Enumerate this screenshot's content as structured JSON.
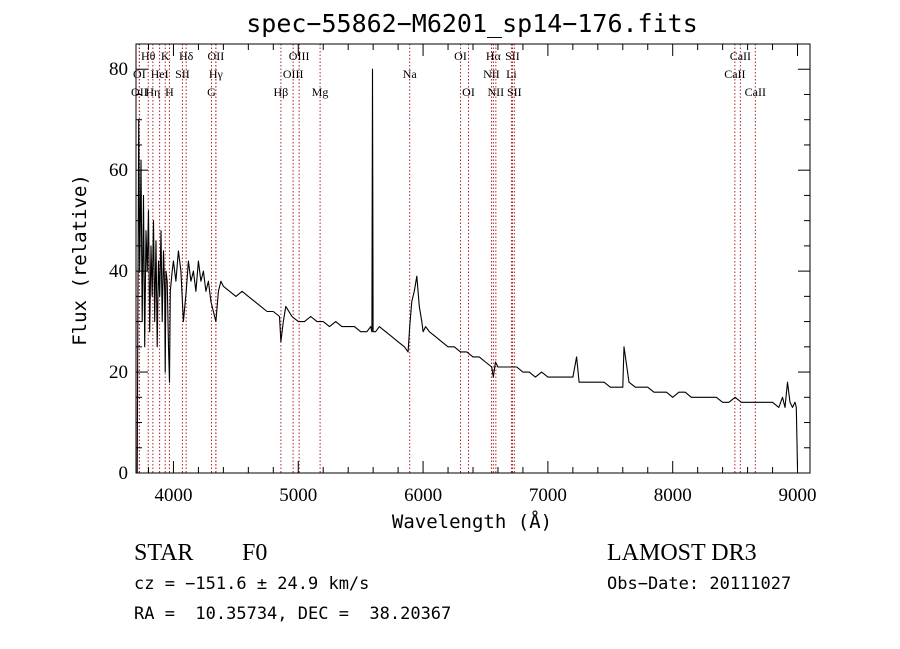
{
  "chart_data": {
    "type": "line",
    "title": "spec−55862−M6201_sp14−176.fits",
    "xlabel": "Wavelength (Å)",
    "ylabel": "Flux (relative)",
    "xlim": [
      3700,
      9100
    ],
    "ylim": [
      0,
      85
    ],
    "x_ticks": [
      4000,
      5000,
      6000,
      7000,
      8000,
      9000
    ],
    "y_ticks": [
      0,
      20,
      40,
      60,
      80
    ],
    "tick_labels_x": [
      "4000",
      "5000",
      "6000",
      "7000",
      "8000",
      "9000"
    ],
    "tick_labels_y": [
      "0",
      "20",
      "40",
      "60",
      "80"
    ],
    "grid": false,
    "series": [
      {
        "name": "flux",
        "color": "#000000",
        "x": [
          3710,
          3722,
          3730,
          3740,
          3750,
          3760,
          3770,
          3780,
          3790,
          3800,
          3810,
          3820,
          3830,
          3840,
          3850,
          3860,
          3870,
          3880,
          3890,
          3900,
          3910,
          3920,
          3930,
          3934,
          3940,
          3950,
          3960,
          3968,
          3975,
          3990,
          4000,
          4020,
          4040,
          4060,
          4080,
          4102,
          4120,
          4140,
          4160,
          4180,
          4200,
          4220,
          4240,
          4260,
          4280,
          4300,
          4320,
          4340,
          4360,
          4380,
          4400,
          4450,
          4500,
          4550,
          4600,
          4650,
          4700,
          4750,
          4800,
          4850,
          4861,
          4880,
          4900,
          4950,
          5000,
          5050,
          5100,
          5150,
          5200,
          5250,
          5300,
          5350,
          5400,
          5450,
          5500,
          5550,
          5580,
          5590,
          5595,
          5600,
          5620,
          5650,
          5700,
          5750,
          5800,
          5850,
          5880,
          5893,
          5910,
          5930,
          5950,
          5970,
          5990,
          6000,
          6020,
          6050,
          6100,
          6150,
          6200,
          6250,
          6300,
          6350,
          6400,
          6450,
          6500,
          6550,
          6563,
          6580,
          6600,
          6650,
          6700,
          6750,
          6800,
          6850,
          6900,
          6950,
          7000,
          7050,
          7100,
          7150,
          7200,
          7230,
          7250,
          7300,
          7350,
          7400,
          7450,
          7500,
          7550,
          7600,
          7610,
          7650,
          7700,
          7750,
          7800,
          7850,
          7900,
          7950,
          8000,
          8050,
          8100,
          8150,
          8200,
          8250,
          8300,
          8350,
          8400,
          8450,
          8500,
          8550,
          8600,
          8650,
          8700,
          8750,
          8800,
          8850,
          8880,
          8900,
          8920,
          8940,
          8960,
          8980,
          8990,
          9000
        ],
        "y": [
          0,
          70,
          40,
          62,
          30,
          55,
          25,
          48,
          40,
          52,
          28,
          45,
          35,
          50,
          30,
          46,
          25,
          42,
          35,
          48,
          30,
          44,
          36,
          20,
          40,
          38,
          25,
          18,
          36,
          40,
          42,
          38,
          44,
          40,
          30,
          36,
          42,
          38,
          40,
          36,
          42,
          38,
          40,
          36,
          38,
          34,
          32,
          30,
          36,
          38,
          37,
          36,
          35,
          36,
          35,
          34,
          33,
          32,
          32,
          31,
          26,
          30,
          33,
          31,
          30,
          30,
          31,
          30,
          30,
          29,
          30,
          29,
          29,
          29,
          28,
          28,
          29,
          28,
          80,
          28,
          28,
          29,
          28,
          27,
          26,
          25,
          24,
          29,
          34,
          36,
          39,
          33,
          30,
          28,
          29,
          28,
          27,
          26,
          25,
          25,
          24,
          24,
          23,
          23,
          22,
          21,
          19,
          22,
          21,
          21,
          21,
          21,
          20,
          20,
          19,
          20,
          19,
          19,
          19,
          19,
          19,
          23,
          18,
          18,
          18,
          18,
          18,
          17,
          17,
          17,
          25,
          18,
          17,
          17,
          17,
          16,
          16,
          16,
          15,
          16,
          16,
          15,
          15,
          15,
          15,
          15,
          14,
          14,
          15,
          14,
          14,
          14,
          14,
          14,
          14,
          13,
          15,
          13,
          18,
          14,
          13,
          14,
          13,
          1
        ]
      }
    ],
    "spectral_lines": [
      {
        "label": "Hθ",
        "x": 3798,
        "row": 1
      },
      {
        "label": "K",
        "x": 3934,
        "row": 1
      },
      {
        "label": "Hδ",
        "x": 4102,
        "row": 1
      },
      {
        "label": "OII",
        "x": 4340,
        "row": 1
      },
      {
        "label": "OIII",
        "x": 5007,
        "row": 1
      },
      {
        "label": "OI",
        "x": 6300,
        "row": 1
      },
      {
        "label": "Hα",
        "x": 6563,
        "row": 1
      },
      {
        "label": "SII",
        "x": 6716,
        "row": 1
      },
      {
        "label": "CaII",
        "x": 8542,
        "row": 1
      },
      {
        "label": "OI",
        "x": 3727,
        "row": 2
      },
      {
        "label": "HeI",
        "x": 3889,
        "row": 2
      },
      {
        "label": "SII",
        "x": 4072,
        "row": 2
      },
      {
        "label": "Hγ",
        "x": 4340,
        "row": 2
      },
      {
        "label": "OIII",
        "x": 4959,
        "row": 2
      },
      {
        "label": "Na",
        "x": 5893,
        "row": 2
      },
      {
        "label": "NII",
        "x": 6548,
        "row": 2
      },
      {
        "label": "Li",
        "x": 6708,
        "row": 2
      },
      {
        "label": "CaII",
        "x": 8498,
        "row": 2
      },
      {
        "label": "OII",
        "x": 3727,
        "row": 3
      },
      {
        "label": "Hη",
        "x": 3835,
        "row": 3
      },
      {
        "label": "H",
        "x": 3968,
        "row": 3
      },
      {
        "label": "G",
        "x": 4305,
        "row": 3
      },
      {
        "label": "Hβ",
        "x": 4861,
        "row": 3
      },
      {
        "label": "Mg",
        "x": 5175,
        "row": 3
      },
      {
        "label": "OI",
        "x": 6364,
        "row": 3
      },
      {
        "label": "NII",
        "x": 6583,
        "row": 3
      },
      {
        "label": "SII",
        "x": 6731,
        "row": 3
      },
      {
        "label": "CaII",
        "x": 8662,
        "row": 3
      }
    ]
  },
  "info": {
    "object_class": "STAR",
    "subclass": "F0",
    "survey": "LAMOST DR3",
    "redshift_text": "cz = −151.6 ± 24.9 km/s",
    "obs_date": "Obs−Date: 20111027",
    "coords": "RA =  10.35734, DEC =  38.20367"
  }
}
